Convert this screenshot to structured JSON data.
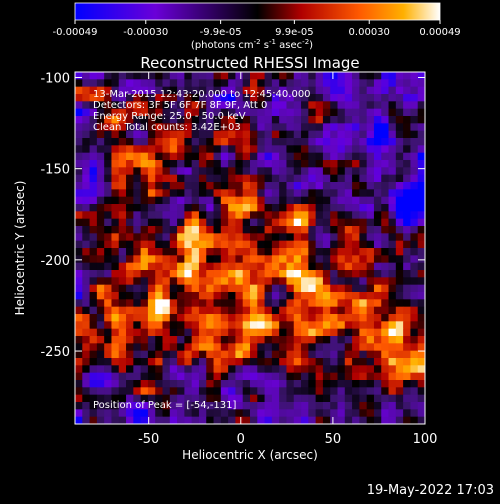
{
  "colorbar": {
    "ticks": [
      "-0.00049",
      "-0.00030",
      "-9.9e-05",
      "9.9e-05",
      "0.00030",
      "0.00049"
    ],
    "tick_values": [
      -0.00049,
      -0.0003,
      -9.9e-05,
      9.9e-05,
      0.0003,
      0.00049
    ],
    "range": [
      -0.00049,
      0.00049
    ],
    "unit_parts": {
      "a": "(photons cm",
      "a_sup": "-2",
      "b": " s",
      "b_sup": "-1",
      "c": " asec",
      "c_sup": "-2",
      "d": ")"
    },
    "colors": [
      "#0000ff",
      "#7a00c8",
      "#000000",
      "#c80000",
      "#ff6600",
      "#ffb400",
      "#ffffff"
    ]
  },
  "chart_data": {
    "type": "heatmap",
    "title": "Reconstructed RHESSI Image",
    "xlabel": "Heliocentric X (arcsec)",
    "ylabel": "Heliocentric Y (arcsec)",
    "xlim": [
      -90,
      100
    ],
    "ylim": [
      -290,
      -97
    ],
    "xticks": [
      -50,
      0,
      50,
      100
    ],
    "yticks": [
      -100,
      -150,
      -200,
      -250
    ],
    "xtick_labels": [
      "-50",
      "0",
      "50",
      "100"
    ],
    "ytick_labels": [
      "-100",
      "-150",
      "-200",
      "-250"
    ],
    "peak_position": [
      -54,
      -131
    ],
    "annotations": [
      "13-Mar-2015 12:43:20.000 to 12:45:40.000",
      "Detectors: 3F 5F 6F 7F 8F 9F, Att 0",
      "Energy Range: 25.0 - 50.0 keV",
      "Clean    Total counts: 3.42E+03"
    ],
    "peak_label": "Position of Peak = [-54,-131]",
    "colormap": "RHESSI red-temperature"
  },
  "footer": {
    "timestamp": "19-May-2022 17:03"
  }
}
